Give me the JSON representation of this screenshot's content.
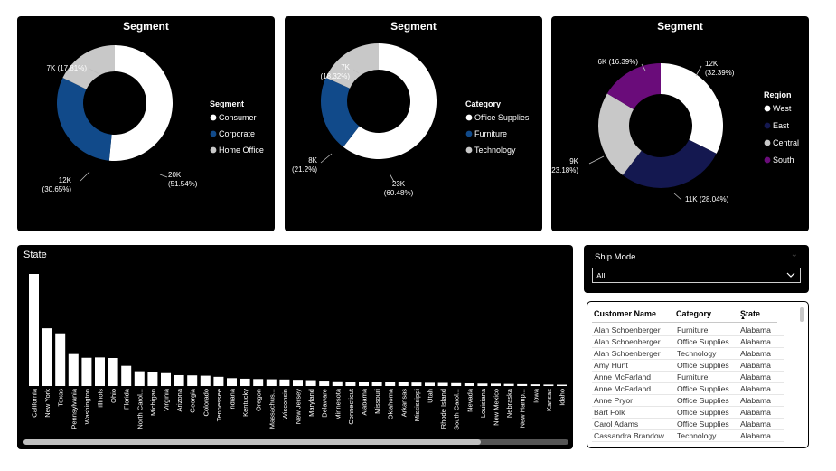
{
  "donut_charts": [
    {
      "title": "Segment",
      "legend_title": "Segment",
      "legend": [
        {
          "label": "Consumer",
          "color": "#ffffff"
        },
        {
          "label": "Corporate",
          "color": "#114a8a"
        },
        {
          "label": "Home Office",
          "color": "#c8c8c8"
        }
      ],
      "slices": [
        {
          "name": "Consumer",
          "value": 51.54,
          "color": "#ffffff",
          "label_l1": "20K",
          "label_l2": "(51.54%)"
        },
        {
          "name": "Corporate",
          "value": 30.65,
          "color": "#114a8a",
          "label_l1": "12K",
          "label_l2": "(30.65%)"
        },
        {
          "name": "Home Office",
          "value": 17.81,
          "color": "#c8c8c8",
          "label_l1": "7K (17.81%)",
          "label_l2": ""
        }
      ]
    },
    {
      "title": "Segment",
      "legend_title": "Category",
      "legend": [
        {
          "label": "Office Supplies",
          "color": "#ffffff"
        },
        {
          "label": "Furniture",
          "color": "#114a8a"
        },
        {
          "label": "Technology",
          "color": "#c8c8c8"
        }
      ],
      "slices": [
        {
          "name": "Office Supplies",
          "value": 60.48,
          "color": "#ffffff",
          "label_l1": "23K",
          "label_l2": "(60.48%)"
        },
        {
          "name": "Furniture",
          "value": 21.2,
          "color": "#114a8a",
          "label_l1": "8K",
          "label_l2": "(21.2%)"
        },
        {
          "name": "Technology",
          "value": 18.32,
          "color": "#c8c8c8",
          "label_l1": "7K",
          "label_l2": "(18.32%)"
        }
      ]
    },
    {
      "title": "Segment",
      "legend_title": "Region",
      "legend": [
        {
          "label": "West",
          "color": "#ffffff"
        },
        {
          "label": "East",
          "color": "#141850"
        },
        {
          "label": "Central",
          "color": "#c8c8c8"
        },
        {
          "label": "South",
          "color": "#6a0c7a"
        }
      ],
      "slices": [
        {
          "name": "West",
          "value": 32.39,
          "color": "#ffffff",
          "label_l1": "12K",
          "label_l2": "(32.39%)"
        },
        {
          "name": "East",
          "value": 28.04,
          "color": "#141850",
          "label_l1": "11K (28.04%)",
          "label_l2": ""
        },
        {
          "name": "Central",
          "value": 23.18,
          "color": "#c8c8c8",
          "label_l1": "9K",
          "label_l2": "(23.18%)"
        },
        {
          "name": "South",
          "value": 16.39,
          "color": "#6a0c7a",
          "label_l1": "6K (16.39%)",
          "label_l2": ""
        }
      ]
    }
  ],
  "chart_data": {
    "type": "bar",
    "title": "State",
    "categories": [
      "California",
      "New York",
      "Texas",
      "Pennsylvania",
      "Washington",
      "Illinois",
      "Ohio",
      "Florida",
      "North Carol...",
      "Michigan",
      "Virginia",
      "Arizona",
      "Georgia",
      "Colorado",
      "Tennessee",
      "Indiana",
      "Kentucky",
      "Oregon",
      "Massachus...",
      "Wisconsin",
      "New Jersey",
      "Maryland",
      "Delaware",
      "Minnesota",
      "Connecticut",
      "Alabama",
      "Missouri",
      "Oklahoma",
      "Arkansas",
      "Mississippi",
      "Utah",
      "Rhode Island",
      "South Carol...",
      "Nevada",
      "Louisiana",
      "New Mexico",
      "Nebraska",
      "New Hamp...",
      "Iowa",
      "Kansas",
      "Idaho"
    ],
    "values": [
      1000,
      515,
      470,
      285,
      252,
      255,
      250,
      180,
      132,
      128,
      115,
      97,
      95,
      92,
      82,
      70,
      65,
      62,
      60,
      58,
      55,
      52,
      48,
      42,
      40,
      38,
      36,
      34,
      33,
      31,
      29,
      28,
      26,
      24,
      22,
      21,
      19,
      17,
      15,
      13,
      12
    ],
    "xlabel": "",
    "ylabel": "",
    "grid": false
  },
  "slicer": {
    "title": "Ship Mode",
    "value": "All",
    "collapse_icon": "chevron-up-icon",
    "dropdown_icon": "chevron-down-icon"
  },
  "table": {
    "headers": [
      "Customer Name",
      "Category",
      "State"
    ],
    "sorted_column": "State",
    "rows": [
      [
        "Alan Schoenberger",
        "Furniture",
        "Alabama"
      ],
      [
        "Alan Schoenberger",
        "Office Supplies",
        "Alabama"
      ],
      [
        "Alan Schoenberger",
        "Technology",
        "Alabama"
      ],
      [
        "Amy Hunt",
        "Office Supplies",
        "Alabama"
      ],
      [
        "Anne McFarland",
        "Furniture",
        "Alabama"
      ],
      [
        "Anne McFarland",
        "Office Supplies",
        "Alabama"
      ],
      [
        "Anne Pryor",
        "Office Supplies",
        "Alabama"
      ],
      [
        "Bart Folk",
        "Office Supplies",
        "Alabama"
      ],
      [
        "Carol Adams",
        "Office Supplies",
        "Alabama"
      ],
      [
        "Cassandra Brandow",
        "Technology",
        "Alabama"
      ]
    ]
  }
}
